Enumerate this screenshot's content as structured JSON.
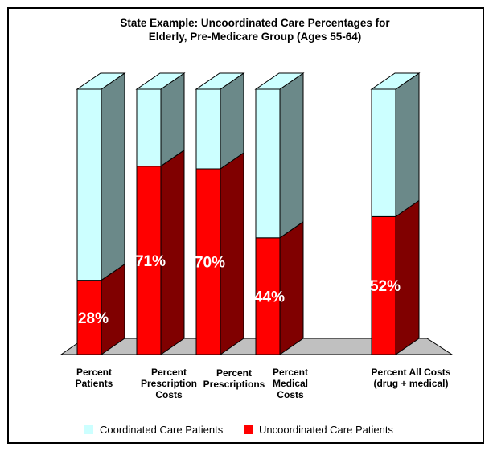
{
  "chart_data": {
    "type": "bar",
    "stacked": true,
    "three_d": true,
    "title_lines": [
      "State Example: Uncoordinated Care Percentages for",
      "Elderly, Pre-Medicare Group (Ages 55-64)"
    ],
    "categories": [
      [
        "Percent",
        "Patients"
      ],
      [
        "Percent",
        "Prescription",
        "Costs"
      ],
      [
        "Percent",
        "Prescriptions"
      ],
      [
        "Percent",
        "Medical",
        "Costs"
      ],
      [
        "Percent All Costs",
        "(drug + medical)"
      ]
    ],
    "series": [
      {
        "name": "Uncoordinated Care Patients",
        "values": [
          28,
          71,
          70,
          44,
          52
        ],
        "color": "#ff0000",
        "side_color": "#800000"
      },
      {
        "name": "Coordinated Care Patients",
        "values": [
          72,
          29,
          30,
          56,
          48
        ],
        "color": "#ccffff",
        "side_color": "#6b8989"
      }
    ],
    "data_labels": [
      "28%",
      "71%",
      "70%",
      "44%",
      "52%"
    ],
    "ylim": [
      0,
      100
    ],
    "floor_color": "#c0c0c0",
    "legend_position": "bottom",
    "legend": [
      {
        "label": "Coordinated Care Patients",
        "color": "#ccffff"
      },
      {
        "label": "Uncoordinated Care Patients",
        "color": "#ff0000"
      }
    ]
  }
}
